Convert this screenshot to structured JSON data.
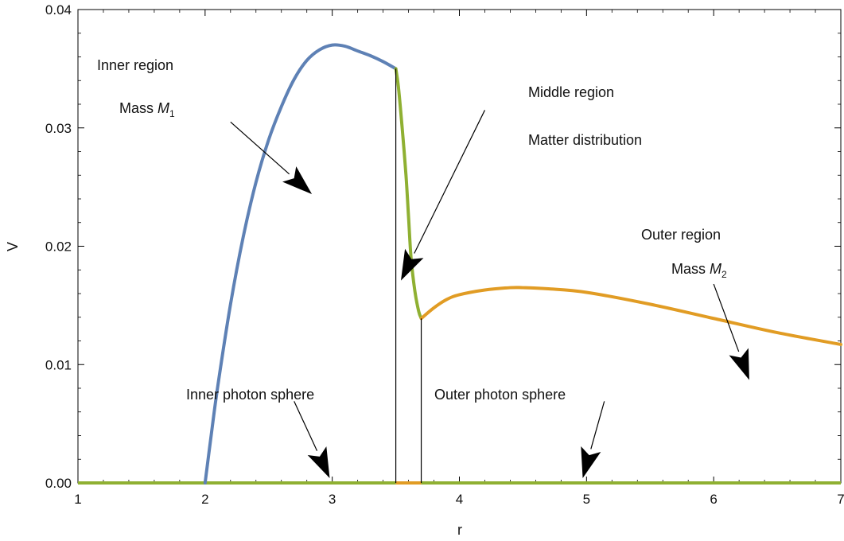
{
  "chart_data": {
    "type": "line",
    "xlabel": "r",
    "ylabel": "V",
    "xlim": [
      1,
      7
    ],
    "ylim": [
      0,
      0.04
    ],
    "grid": false,
    "x_ticks": [
      "1",
      "2",
      "3",
      "4",
      "5",
      "6",
      "7"
    ],
    "y_ticks": [
      "0.00",
      "0.01",
      "0.02",
      "0.03",
      "0.04"
    ],
    "colors": {
      "inner": "#5E81B5",
      "middle": "#8FB032",
      "outer": "#E19C24",
      "axis": "#000000"
    },
    "series": [
      {
        "region": "inner",
        "x": [
          2.0,
          2.05,
          2.1,
          2.2,
          2.3,
          2.4,
          2.5,
          2.6,
          2.7,
          2.8,
          2.9,
          3.0,
          3.1,
          3.2,
          3.3,
          3.4,
          3.5
        ],
        "y": [
          0.0,
          0.0042,
          0.0082,
          0.0151,
          0.0208,
          0.0254,
          0.029,
          0.0318,
          0.0341,
          0.0357,
          0.0366,
          0.037,
          0.0369,
          0.0365,
          0.0361,
          0.0356,
          0.035
        ]
      },
      {
        "region": "middle",
        "x": [
          3.5,
          3.52,
          3.55,
          3.58,
          3.6,
          3.62,
          3.65,
          3.68,
          3.7
        ],
        "y": [
          0.035,
          0.0335,
          0.03,
          0.026,
          0.0225,
          0.019,
          0.0162,
          0.0145,
          0.0139
        ]
      },
      {
        "region": "outer",
        "x": [
          3.7,
          3.8,
          3.9,
          4.0,
          4.2,
          4.4,
          4.5,
          4.7,
          5.0,
          5.5,
          6.0,
          6.5,
          7.0
        ],
        "y": [
          0.0139,
          0.0148,
          0.0155,
          0.0159,
          0.0163,
          0.0165,
          0.0165,
          0.0164,
          0.0161,
          0.0151,
          0.0139,
          0.0127,
          0.0117
        ]
      }
    ],
    "baseline": {
      "y": 0,
      "segments": [
        {
          "x": [
            1,
            3.5
          ],
          "color": "#8FB032"
        },
        {
          "x": [
            3.5,
            3.7
          ],
          "color": "#E19C24"
        },
        {
          "x": [
            3.7,
            7
          ],
          "color": "#8FB032"
        }
      ]
    },
    "vertical_lines": [
      {
        "x": 3.5,
        "y": [
          0,
          0.035
        ]
      },
      {
        "x": 3.7,
        "y": [
          0,
          0.0139
        ]
      }
    ],
    "annotations": {
      "inner_region": "Inner region",
      "mass_m1": {
        "text": "Mass ",
        "symbol": "M",
        "sub": "1"
      },
      "middle_region": "Middle region",
      "matter_distribution": "Matter distribution",
      "outer_region": "Outer region",
      "mass_m2": {
        "text": "Mass ",
        "symbol": "M",
        "sub": "2"
      },
      "inner_photon_sphere": "Inner photon sphere",
      "outer_photon_sphere": "Outer photon sphere"
    },
    "arrows": [
      {
        "name": "arrow-mass-m1",
        "from": [
          2.2,
          0.0305
        ],
        "to": [
          2.84,
          0.0244
        ]
      },
      {
        "name": "arrow-matter-distribution",
        "from": [
          4.2,
          0.0315
        ],
        "to": [
          3.54,
          0.0171
        ]
      },
      {
        "name": "arrow-mass-m2",
        "from": [
          6.0,
          0.0168
        ],
        "to": [
          6.28,
          0.0087
        ]
      },
      {
        "name": "arrow-inner-photon-sphere",
        "from": [
          2.7,
          0.0069
        ],
        "to": [
          2.98,
          0.0004
        ]
      },
      {
        "name": "arrow-outer-photon-sphere",
        "from": [
          5.14,
          0.0069
        ],
        "to": [
          4.97,
          0.0004
        ]
      }
    ]
  }
}
